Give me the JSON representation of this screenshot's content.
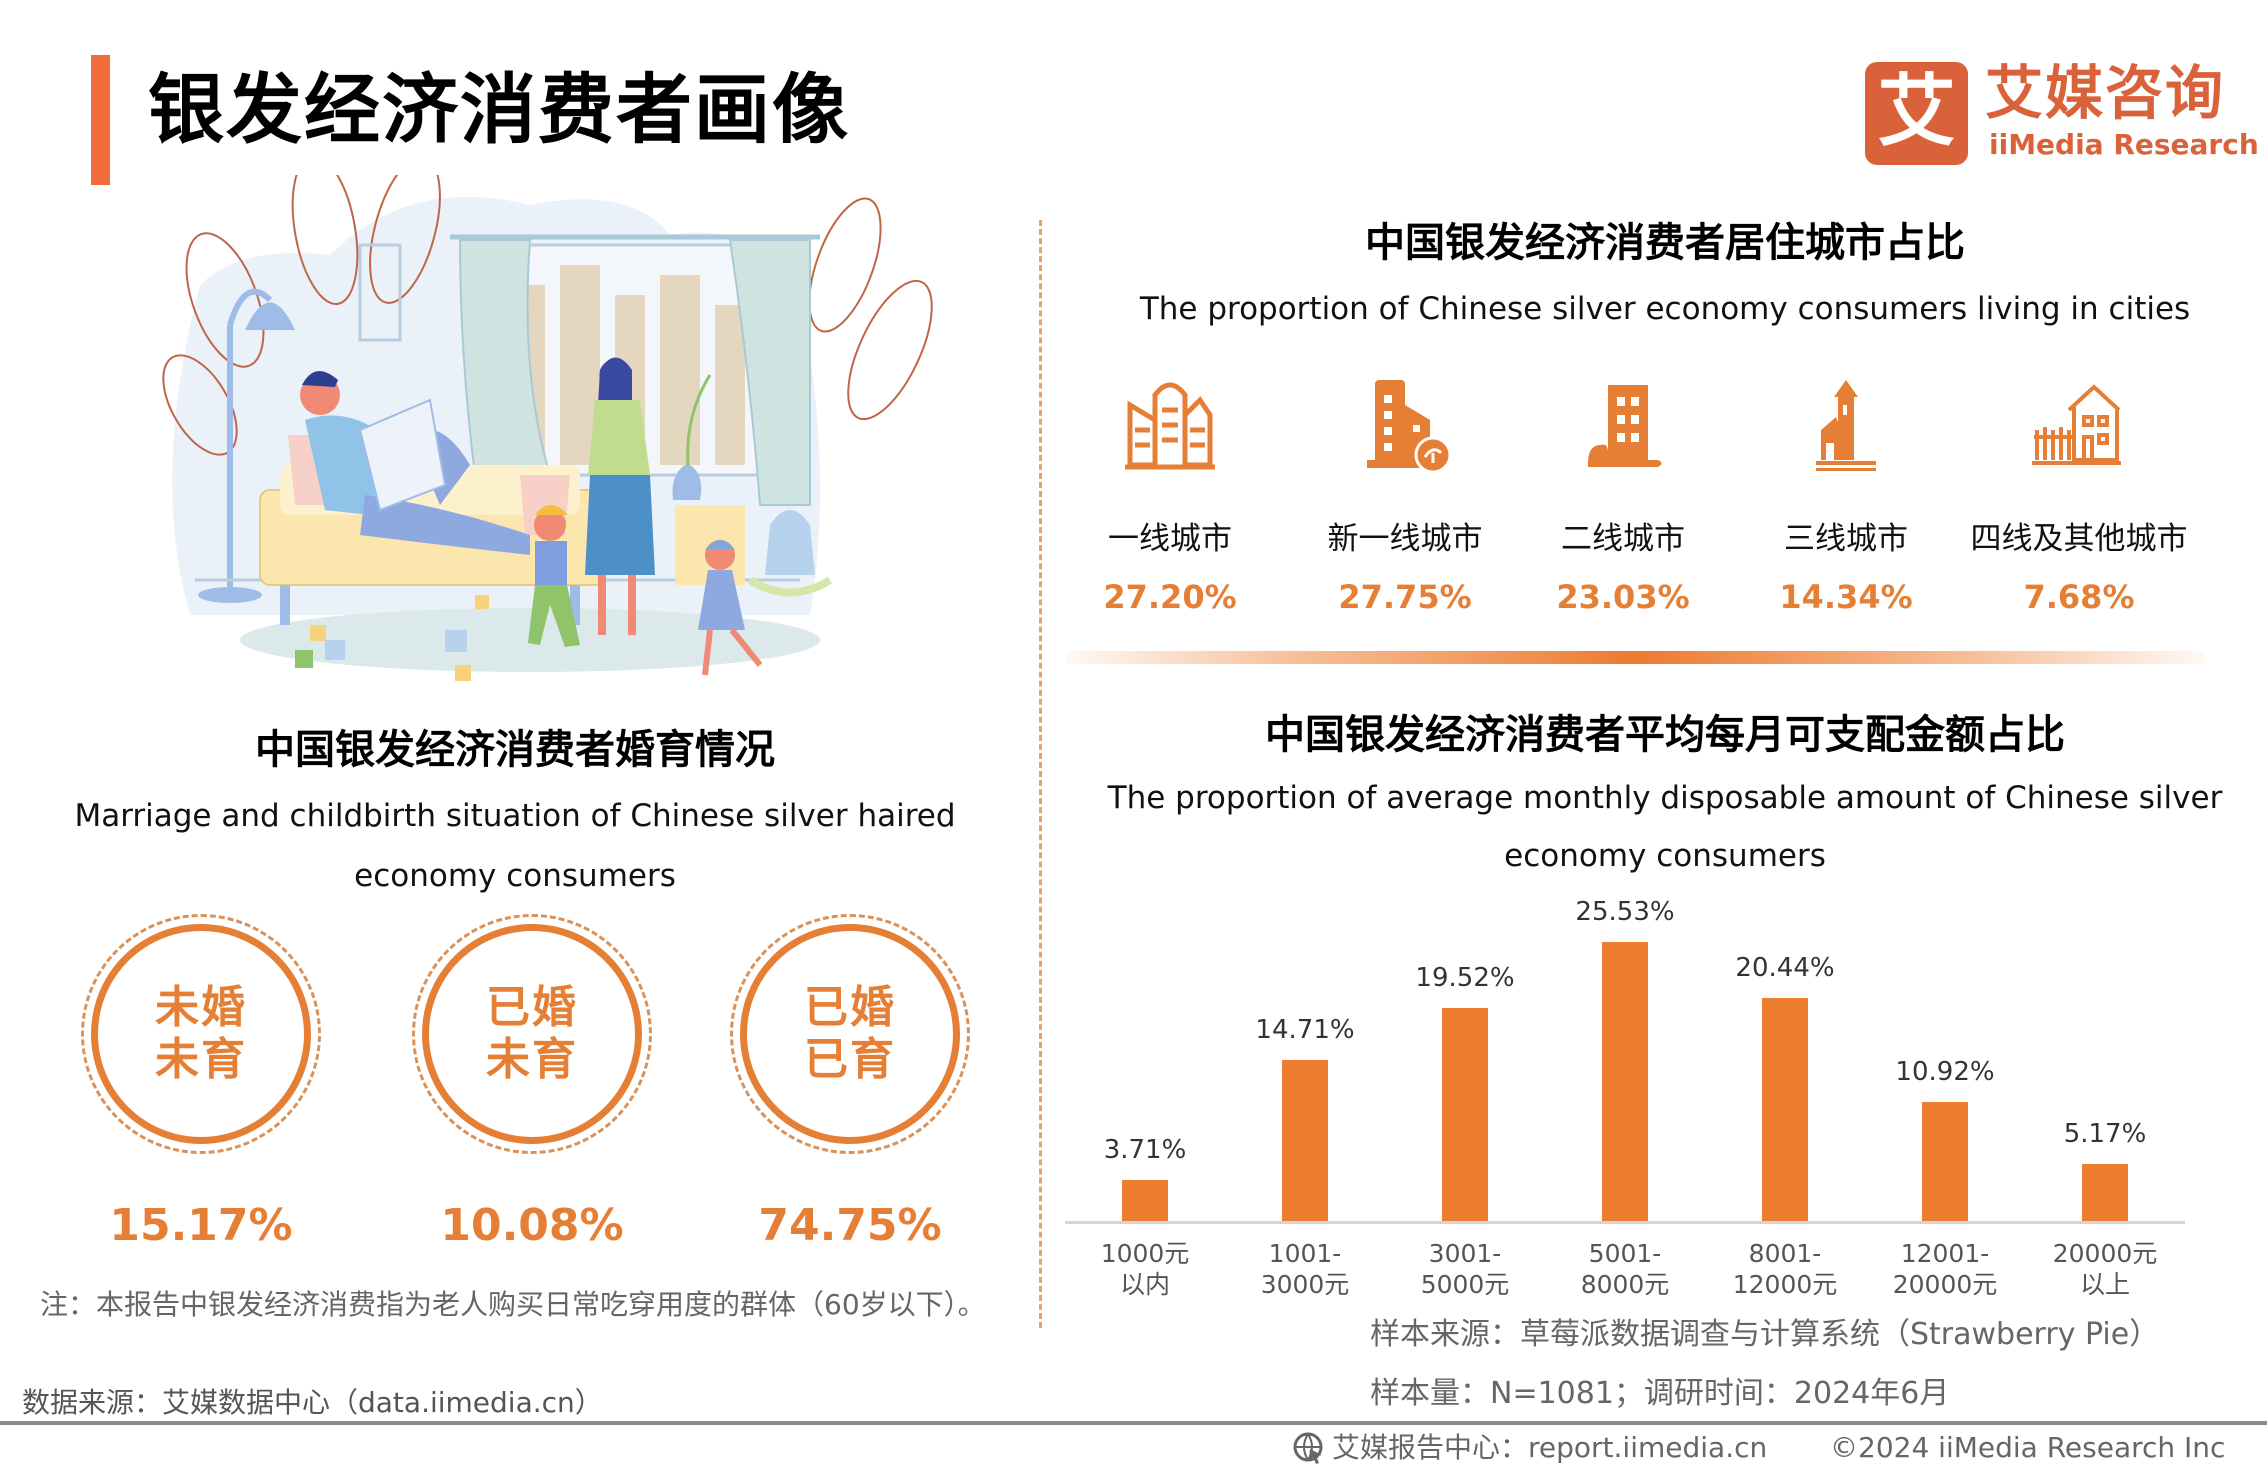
{
  "header": {
    "title": "银发经济消费者画像",
    "accent_color": "#f26b3a",
    "logo": {
      "glyph": "艾",
      "cn": "艾媒咨询",
      "en": "iiMedia Research",
      "color": "#d9623b"
    }
  },
  "illustration": {
    "description": "family-living-room-illustration"
  },
  "marriage": {
    "title": "中国银发经济消费者婚育情况",
    "subtitle_line1": "Marriage and childbirth situation of Chinese silver haired",
    "subtitle_line2": "economy consumers",
    "items": [
      {
        "line1": "未婚",
        "line2": "未育",
        "value": "15.17%"
      },
      {
        "line1": "已婚",
        "line2": "未育",
        "value": "10.08%"
      },
      {
        "line1": "已婚",
        "line2": "已育",
        "value": "74.75%"
      }
    ],
    "note": "注：本报告中银发经济消费指为老人购买日常吃穿用度的群体（60岁以下）。",
    "source": "数据来源：艾媒数据中心（data.iimedia.cn）"
  },
  "cities": {
    "title": "中国银发经济消费者居住城市占比",
    "subtitle": "The proportion of Chinese silver economy consumers living in cities",
    "items": [
      {
        "label": "一线城市",
        "value": "27.20%",
        "icon": "skyscrapers-icon"
      },
      {
        "label": "新一线城市",
        "value": "27.75%",
        "icon": "eco-building-icon"
      },
      {
        "label": "二线城市",
        "value": "23.03%",
        "icon": "apartment-building-icon"
      },
      {
        "label": "三线城市",
        "value": "14.34%",
        "icon": "town-tower-icon"
      },
      {
        "label": "四线及其他城市",
        "value": "7.68%",
        "icon": "house-fence-icon"
      }
    ]
  },
  "chart": {
    "title": "中国银发经济消费者平均每月可支配金额占比",
    "subtitle_line1": "The proportion of average monthly disposable amount of Chinese silver",
    "subtitle_line2": "economy consumers",
    "bar_color": "#ed7d31",
    "bars": [
      {
        "category": "1000元\n以内",
        "label": "3.71%"
      },
      {
        "category": "1001-\n3000元",
        "label": "14.71%"
      },
      {
        "category": "3001-\n5000元",
        "label": "19.52%"
      },
      {
        "category": "5001-\n8000元",
        "label": "25.53%"
      },
      {
        "category": "8001-\n12000元",
        "label": "20.44%"
      },
      {
        "category": "12001-\n20000元",
        "label": "10.92%"
      },
      {
        "category": "20000元\n以上",
        "label": "5.17%"
      }
    ],
    "sample_source": "样本来源：草莓派数据调查与计算系统（Strawberry Pie）",
    "sample_size": "样本量：N=1081；调研时间：2024年6月"
  },
  "chart_data": {
    "type": "bar",
    "title": "中国银发经济消费者平均每月可支配金额占比",
    "subtitle": "The proportion of average monthly disposable amount of Chinese silver economy consumers",
    "categories": [
      "1000元以内",
      "1001-3000元",
      "3001-5000元",
      "5001-8000元",
      "8001-12000元",
      "12001-20000元",
      "20000元以上"
    ],
    "values": [
      3.71,
      14.71,
      19.52,
      25.53,
      20.44,
      10.92,
      5.17
    ],
    "xlabel": "",
    "ylabel": "",
    "ylim": [
      0,
      30
    ],
    "grid": false,
    "legend": "none",
    "unit": "%"
  },
  "footer": {
    "report_center": "艾媒报告中心：report.iimedia.cn",
    "copyright": "©2024  iiMedia Research Inc"
  }
}
